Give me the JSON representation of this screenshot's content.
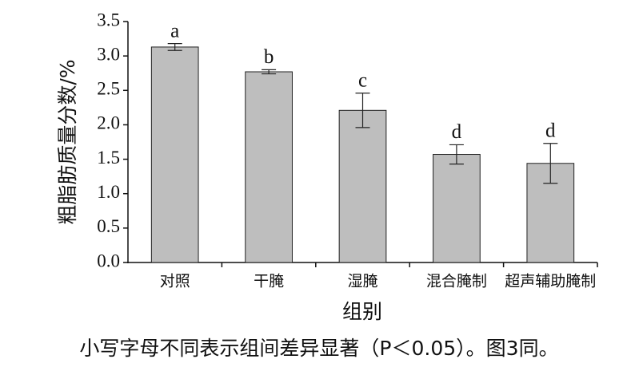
{
  "chart_data": {
    "type": "bar",
    "y_label": "粗脂肪质量分数/%",
    "x_label": "组别",
    "categories": [
      "对照",
      "干腌",
      "湿腌",
      "混合腌制",
      "超声辅助腌制"
    ],
    "values": [
      3.13,
      2.77,
      2.21,
      1.57,
      1.44
    ],
    "errors": [
      0.05,
      0.03,
      0.25,
      0.14,
      0.29
    ],
    "significance_labels": [
      "a",
      "b",
      "c",
      "d",
      "d"
    ],
    "color": "#bebebe",
    "ylim": [
      0,
      3.5
    ],
    "yticks": [
      {
        "value": 0,
        "label": "0.0"
      },
      {
        "value": 0.5,
        "label": "0.5"
      },
      {
        "value": 1,
        "label": "1.0"
      },
      {
        "value": 1.5,
        "label": "1.5"
      },
      {
        "value": 2,
        "label": "2.0"
      },
      {
        "value": 2.5,
        "label": "2.5"
      },
      {
        "value": 3,
        "label": "3.0"
      },
      {
        "value": 3.5,
        "label": "3.5"
      }
    ],
    "grid": false
  },
  "caption": "小写字母不同表示组间差异显著（P＜0.05）。图3同。"
}
